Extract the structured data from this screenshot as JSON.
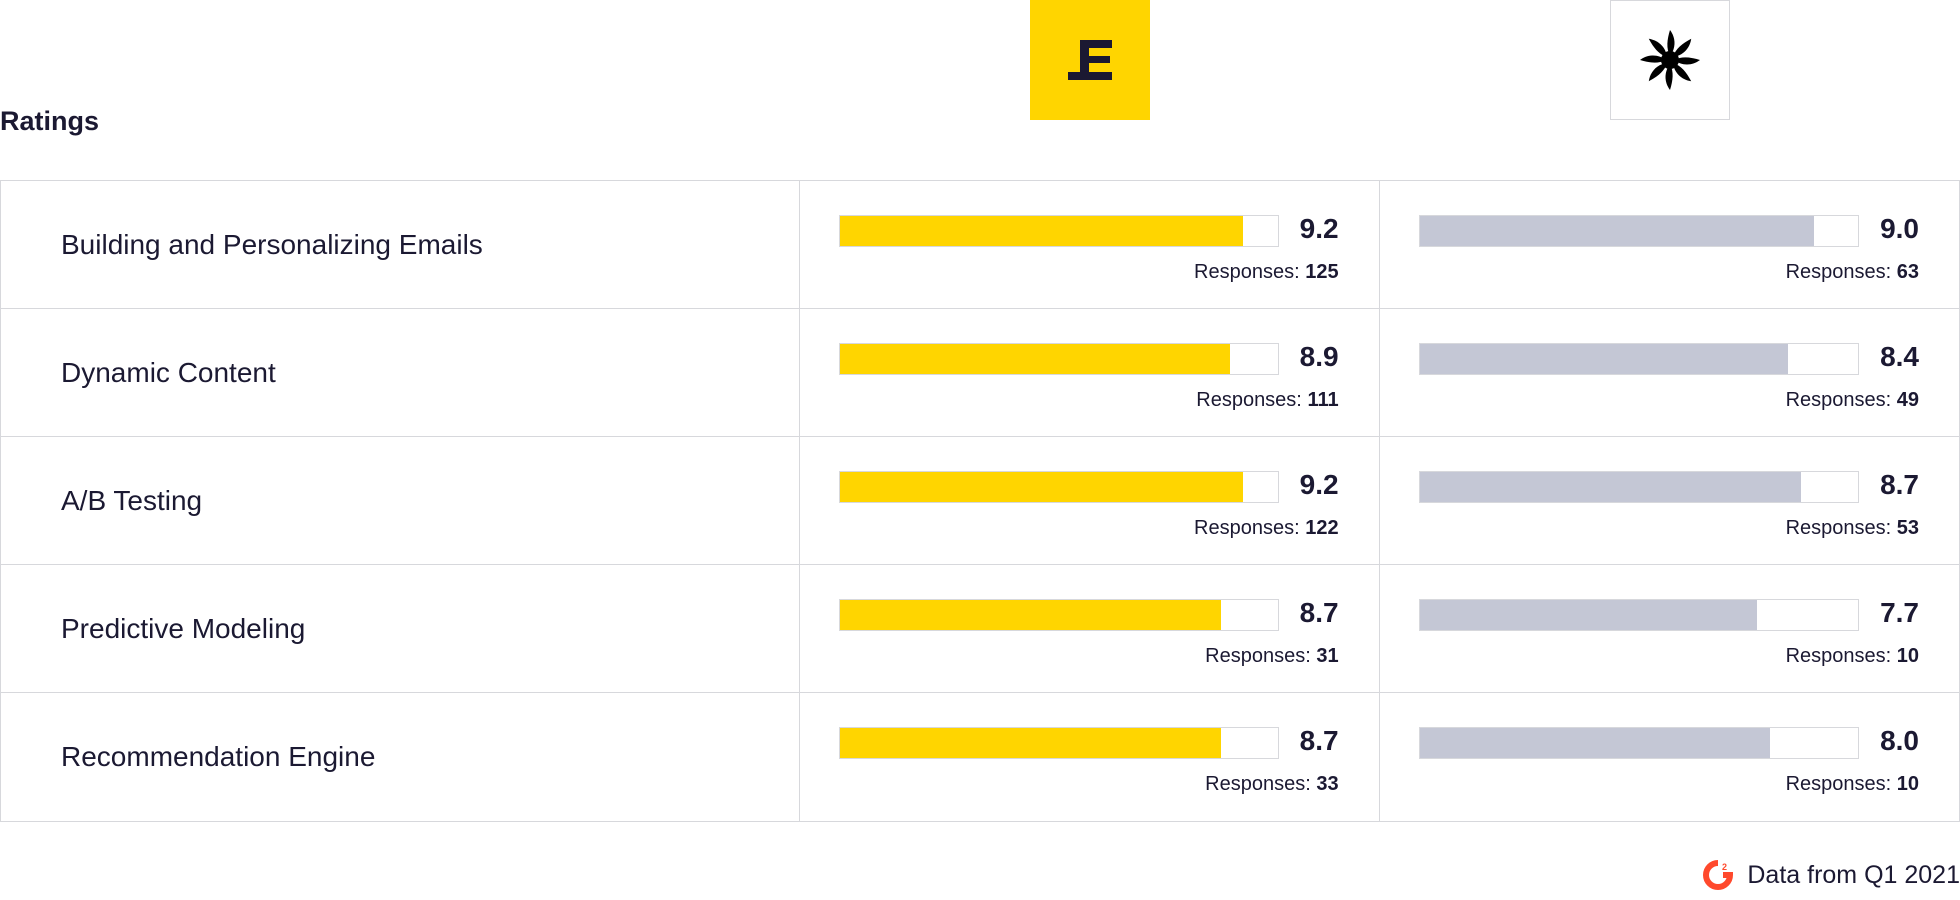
{
  "section_title": "Ratings",
  "products": [
    {
      "logo_icon": "stair-e-logo-icon",
      "color": "#ffd500"
    },
    {
      "logo_icon": "pinwheel-star-logo-icon",
      "color": "#c4c7d5"
    }
  ],
  "chart_data": {
    "type": "bar",
    "orientation": "horizontal",
    "xlim": [
      0,
      10
    ],
    "categories": [
      "Building and Personalizing Emails",
      "Dynamic Content",
      "A/B Testing",
      "Predictive Modeling",
      "Recommendation Engine"
    ],
    "response_label": "Responses:",
    "series": [
      {
        "values": [
          9.2,
          8.9,
          9.2,
          8.7,
          8.7
        ],
        "responses": [
          125,
          111,
          122,
          31,
          33
        ]
      },
      {
        "values": [
          9.0,
          8.4,
          8.7,
          7.7,
          8.0
        ],
        "responses": [
          63,
          49,
          53,
          10,
          10
        ]
      }
    ]
  },
  "footer": {
    "source_text": "Data from Q1 2021",
    "logo_icon": "g2-logo-icon",
    "logo_color": "#ff492c"
  }
}
